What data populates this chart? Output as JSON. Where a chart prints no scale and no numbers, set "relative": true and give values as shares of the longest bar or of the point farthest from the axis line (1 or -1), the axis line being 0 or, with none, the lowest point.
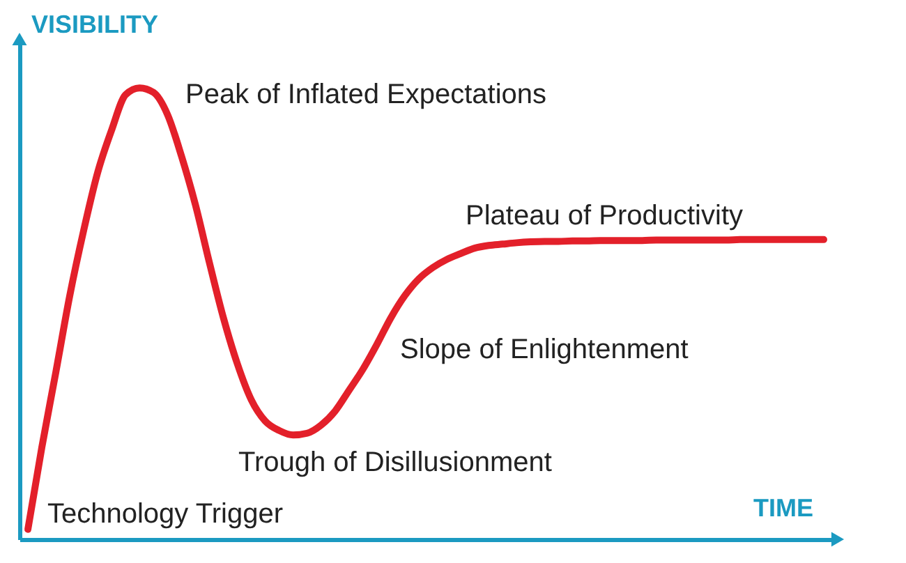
{
  "chart_data": {
    "type": "line",
    "relative": true,
    "xlabel": "TIME",
    "ylabel": "VISIBILITY",
    "line_style": "solid",
    "categories": [
      null,
      null,
      null,
      null,
      null,
      null,
      null,
      null,
      null,
      null,
      null,
      null,
      null,
      null,
      null,
      null,
      null,
      null,
      null,
      null,
      null,
      null,
      null,
      null,
      null,
      null,
      null,
      null,
      null,
      null,
      null,
      null,
      null,
      null,
      null,
      null,
      null,
      null,
      null,
      null,
      null,
      null,
      null,
      null,
      null,
      null,
      null,
      null,
      null,
      null,
      null,
      null,
      null,
      null,
      null,
      null,
      null,
      null
    ],
    "series": [
      {
        "color": "#e3202a",
        "values": [
          0.022,
          0.204,
          0.37,
          0.54,
          0.685,
          0.813,
          0.907,
          0.985,
          1.0,
          0.99,
          0.941,
          0.849,
          0.741,
          0.613,
          0.491,
          0.389,
          0.309,
          0.262,
          0.241,
          0.231,
          0.235,
          0.253,
          0.284,
          0.33,
          0.377,
          0.432,
          0.491,
          0.54,
          0.577,
          0.602,
          0.62,
          0.633,
          0.645,
          0.651,
          0.654,
          0.657,
          0.659,
          0.66,
          0.66,
          0.661,
          0.661,
          0.662,
          0.662,
          0.662,
          0.662,
          0.663,
          0.663,
          0.663,
          0.663,
          0.663,
          0.663,
          0.664,
          0.664,
          0.664,
          0.664,
          0.664,
          0.664,
          0.664
        ]
      }
    ],
    "annotations": [
      "Technology Trigger",
      "Peak of Inflated Expectations",
      "Trough of Disillusionment",
      "Slope of Enlightenment",
      "Plateau of Productivity"
    ]
  }
}
